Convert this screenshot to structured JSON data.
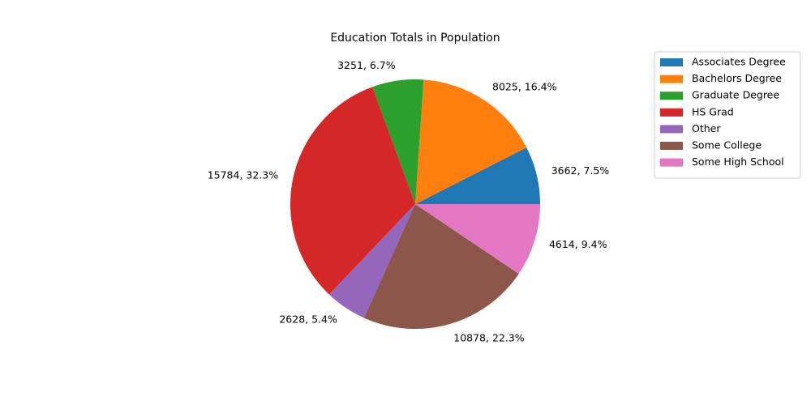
{
  "chart_data": {
    "type": "pie",
    "title": "Education Totals in Population",
    "categories": [
      "Associates Degree",
      "Bachelors Degree",
      "Graduate Degree",
      "HS Grad",
      "Other",
      "Some College",
      "Some High School"
    ],
    "values": [
      3662,
      8025,
      3251,
      15784,
      2628,
      10878,
      4614
    ],
    "slice_labels": [
      "3662, 7.5%",
      "8025, 16.4%",
      "3251, 6.7%",
      "15784, 32.3%",
      "2628, 5.4%",
      "10878, 22.3%",
      "4614, 9.4%"
    ],
    "colors": [
      "#1f77b4",
      "#ff7f0e",
      "#2ca02c",
      "#d62728",
      "#9467bd",
      "#8c564b",
      "#e377c2"
    ],
    "legend_placement": "top-right, outside plot"
  }
}
